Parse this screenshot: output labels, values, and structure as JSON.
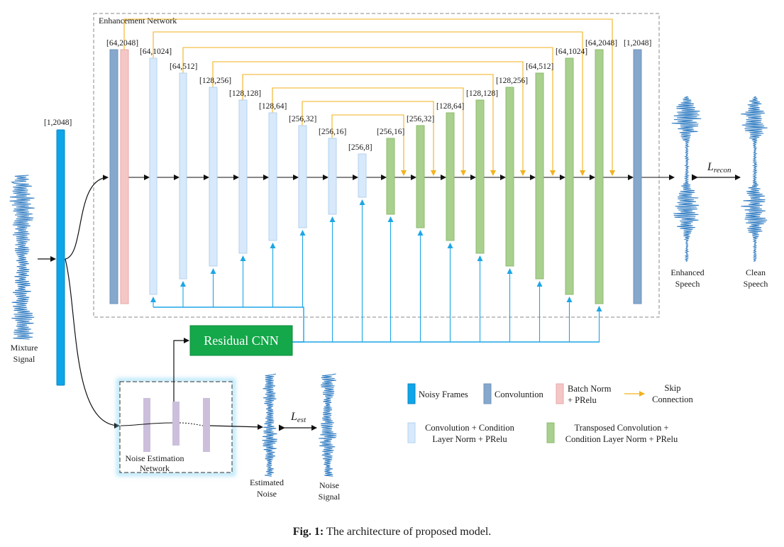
{
  "enhancement": {
    "title": "Enhancement Network",
    "input_dim": "[1,2048]",
    "conv_dim": "[64,2048]",
    "enc_dims": [
      "[64,1024]",
      "[64,512]",
      "[128,256]",
      "[128,128]",
      "[128,64]",
      "[256,32]",
      "[256,16]",
      "[256,8]"
    ],
    "dec_dims": [
      "[256,16]",
      "[256,32]",
      "[128,64]",
      "[128,128]",
      "[128,256]",
      "[64,512]",
      "[64,1024]",
      "[64,2048]"
    ],
    "out_dim": "[1,2048]"
  },
  "signals": {
    "mixture": [
      "Mixture",
      "Signal"
    ],
    "enhanced": [
      "Enhanced",
      "Speech"
    ],
    "clean": [
      "Clean",
      "Speech"
    ],
    "estimated_noise": [
      "Estimated",
      "Noise"
    ],
    "noise_signal": [
      "Noise",
      "Signal"
    ]
  },
  "residual": {
    "label": "Residual CNN"
  },
  "noise_net": {
    "label": [
      "Noise Estimation",
      "Network"
    ]
  },
  "losses": {
    "recon_main": "L",
    "recon_sub": "recon",
    "est_main": "L",
    "est_sub": "est"
  },
  "legend": {
    "noisy_frames": "Noisy Frames",
    "convolution": "Convoluntion",
    "batch_norm": [
      "Batch Norm",
      "+ PRelu"
    ],
    "skip": [
      "Skip",
      "Connection"
    ],
    "conv_cond": [
      "Convolution + Condition",
      "Layer Norm + PRelu"
    ],
    "tconv_cond": [
      "Transposed Convolution +",
      "Condition Layer Norm + PRelu"
    ]
  },
  "caption": {
    "prefix": "Fig. 1:",
    "text": " The architecture of proposed model."
  },
  "colors": {
    "noisy_frames": "#0ea5e9",
    "convolution": "#86a8cc",
    "batch_norm": "#f5c6c6",
    "encoder": "#d7e9fb",
    "decoder": "#a9d08e",
    "skip": "#f2b21c",
    "condition": "#1da6e6",
    "residual_cnn": "#14a84a",
    "noise_bars": "#cbbfdc"
  }
}
